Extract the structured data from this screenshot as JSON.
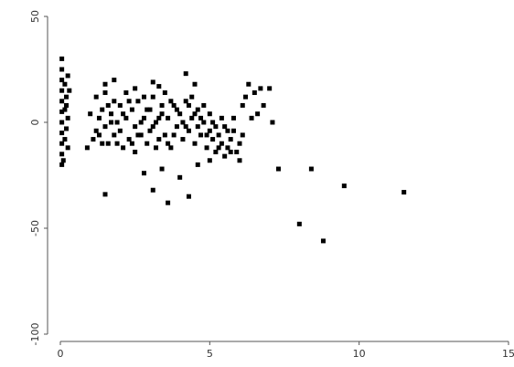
{
  "chart_data": {
    "type": "scatter",
    "title": "",
    "xlabel": "",
    "ylabel": "",
    "xlim": [
      0,
      15
    ],
    "ylim": [
      -100,
      50
    ],
    "xticks": [
      0,
      5,
      10,
      15
    ],
    "yticks": [
      50,
      0,
      -50,
      -100
    ],
    "xtick_labels": [
      "0",
      "5",
      "10",
      "15"
    ],
    "ytick_labels": [
      "50",
      "0",
      "-50",
      "-100"
    ],
    "grid": false,
    "legend": "none",
    "marker_color": "#000000",
    "points": [
      {
        "x": 0.05,
        "y": 30
      },
      {
        "x": 0.05,
        "y": 25
      },
      {
        "x": 0.05,
        "y": 20
      },
      {
        "x": 0.05,
        "y": 15
      },
      {
        "x": 0.05,
        "y": 10
      },
      {
        "x": 0.05,
        "y": 5
      },
      {
        "x": 0.05,
        "y": 0
      },
      {
        "x": 0.05,
        "y": -5
      },
      {
        "x": 0.05,
        "y": -10
      },
      {
        "x": 0.05,
        "y": -15
      },
      {
        "x": 0.05,
        "y": -20
      },
      {
        "x": 0.15,
        "y": 18
      },
      {
        "x": 0.2,
        "y": 12
      },
      {
        "x": 0.15,
        "y": 6
      },
      {
        "x": 0.25,
        "y": 2
      },
      {
        "x": 0.2,
        "y": -3
      },
      {
        "x": 0.15,
        "y": -8
      },
      {
        "x": 0.25,
        "y": -12
      },
      {
        "x": 0.2,
        "y": 8
      },
      {
        "x": 0.3,
        "y": 15
      },
      {
        "x": 0.1,
        "y": -18
      },
      {
        "x": 0.25,
        "y": 22
      },
      {
        "x": 0.9,
        "y": -12
      },
      {
        "x": 1.1,
        "y": -8
      },
      {
        "x": 1.2,
        "y": -4
      },
      {
        "x": 1.3,
        "y": 2
      },
      {
        "x": 1.4,
        "y": 6
      },
      {
        "x": 1.5,
        "y": 14
      },
      {
        "x": 1.5,
        "y": -2
      },
      {
        "x": 1.6,
        "y": -10
      },
      {
        "x": 1.7,
        "y": 4
      },
      {
        "x": 1.8,
        "y": 10
      },
      {
        "x": 1.8,
        "y": -6
      },
      {
        "x": 1.9,
        "y": 0
      },
      {
        "x": 2.0,
        "y": -4
      },
      {
        "x": 2.0,
        "y": 8
      },
      {
        "x": 2.1,
        "y": -12
      },
      {
        "x": 2.2,
        "y": 2
      },
      {
        "x": 2.3,
        "y": -8
      },
      {
        "x": 2.4,
        "y": 6
      },
      {
        "x": 2.5,
        "y": -2
      },
      {
        "x": 2.5,
        "y": -14
      },
      {
        "x": 2.6,
        "y": 10
      },
      {
        "x": 2.7,
        "y": -6
      },
      {
        "x": 2.8,
        "y": 2
      },
      {
        "x": 2.9,
        "y": -10
      },
      {
        "x": 3.0,
        "y": 6
      },
      {
        "x": 3.0,
        "y": -4
      },
      {
        "x": 3.1,
        "y": 12
      },
      {
        "x": 3.2,
        "y": 0
      },
      {
        "x": 3.3,
        "y": -8
      },
      {
        "x": 3.4,
        "y": 4
      },
      {
        "x": 3.5,
        "y": 14
      },
      {
        "x": 3.5,
        "y": -6
      },
      {
        "x": 3.6,
        "y": 2
      },
      {
        "x": 3.7,
        "y": -12
      },
      {
        "x": 3.8,
        "y": 8
      },
      {
        "x": 3.9,
        "y": -2
      },
      {
        "x": 4.0,
        "y": 4
      },
      {
        "x": 4.1,
        "y": -8
      },
      {
        "x": 4.2,
        "y": 10
      },
      {
        "x": 4.3,
        "y": -4
      },
      {
        "x": 4.4,
        "y": 2
      },
      {
        "x": 4.5,
        "y": -10
      },
      {
        "x": 4.6,
        "y": 6
      },
      {
        "x": 4.7,
        "y": -6
      },
      {
        "x": 4.8,
        "y": 0
      },
      {
        "x": 4.9,
        "y": -12
      },
      {
        "x": 5.0,
        "y": -4
      },
      {
        "x": 5.1,
        "y": -8
      },
      {
        "x": 5.2,
        "y": -14
      },
      {
        "x": 5.3,
        "y": -6
      },
      {
        "x": 5.4,
        "y": -10
      },
      {
        "x": 5.5,
        "y": -2
      },
      {
        "x": 5.6,
        "y": -12
      },
      {
        "x": 5.7,
        "y": -8
      },
      {
        "x": 5.8,
        "y": -4
      },
      {
        "x": 5.9,
        "y": -14
      },
      {
        "x": 6.0,
        "y": -10
      },
      {
        "x": 6.1,
        "y": -6
      },
      {
        "x": 1.2,
        "y": 12
      },
      {
        "x": 1.4,
        "y": -10
      },
      {
        "x": 1.6,
        "y": 8
      },
      {
        "x": 2.2,
        "y": 14
      },
      {
        "x": 2.4,
        "y": -10
      },
      {
        "x": 2.6,
        "y": -6
      },
      {
        "x": 2.8,
        "y": 12
      },
      {
        "x": 3.2,
        "y": -12
      },
      {
        "x": 3.4,
        "y": 8
      },
      {
        "x": 3.6,
        "y": -10
      },
      {
        "x": 3.8,
        "y": -6
      },
      {
        "x": 4.2,
        "y": -2
      },
      {
        "x": 4.4,
        "y": 12
      },
      {
        "x": 4.6,
        "y": -2
      },
      {
        "x": 4.8,
        "y": 8
      },
      {
        "x": 5.0,
        "y": 4
      },
      {
        "x": 5.2,
        "y": -2
      },
      {
        "x": 5.4,
        "y": 2
      },
      {
        "x": 5.6,
        "y": -4
      },
      {
        "x": 5.8,
        "y": 2
      },
      {
        "x": 1.0,
        "y": 4
      },
      {
        "x": 1.3,
        "y": -6
      },
      {
        "x": 1.7,
        "y": 0
      },
      {
        "x": 1.9,
        "y": -10
      },
      {
        "x": 2.1,
        "y": 4
      },
      {
        "x": 2.3,
        "y": 10
      },
      {
        "x": 2.7,
        "y": 0
      },
      {
        "x": 2.9,
        "y": 6
      },
      {
        "x": 3.1,
        "y": -2
      },
      {
        "x": 3.3,
        "y": 2
      },
      {
        "x": 3.7,
        "y": 10
      },
      {
        "x": 3.9,
        "y": 6
      },
      {
        "x": 4.1,
        "y": 0
      },
      {
        "x": 4.3,
        "y": 8
      },
      {
        "x": 4.5,
        "y": 4
      },
      {
        "x": 4.7,
        "y": 2
      },
      {
        "x": 4.9,
        "y": -6
      },
      {
        "x": 5.1,
        "y": 0
      },
      {
        "x": 5.3,
        "y": -12
      },
      {
        "x": 5.7,
        "y": -14
      },
      {
        "x": 1.5,
        "y": 18
      },
      {
        "x": 1.8,
        "y": 20
      },
      {
        "x": 2.5,
        "y": 16
      },
      {
        "x": 3.1,
        "y": 19
      },
      {
        "x": 3.3,
        "y": 17
      },
      {
        "x": 4.2,
        "y": 23
      },
      {
        "x": 4.5,
        "y": 18
      },
      {
        "x": 1.5,
        "y": -34
      },
      {
        "x": 2.8,
        "y": -24
      },
      {
        "x": 3.1,
        "y": -32
      },
      {
        "x": 3.4,
        "y": -22
      },
      {
        "x": 3.6,
        "y": -38
      },
      {
        "x": 4.0,
        "y": -26
      },
      {
        "x": 4.3,
        "y": -35
      },
      {
        "x": 4.6,
        "y": -20
      },
      {
        "x": 5.0,
        "y": -18
      },
      {
        "x": 5.5,
        "y": -16
      },
      {
        "x": 6.0,
        "y": -18
      },
      {
        "x": 6.1,
        "y": 8
      },
      {
        "x": 6.2,
        "y": 12
      },
      {
        "x": 6.3,
        "y": 18
      },
      {
        "x": 6.4,
        "y": 2
      },
      {
        "x": 6.5,
        "y": 14
      },
      {
        "x": 6.6,
        "y": 4
      },
      {
        "x": 6.7,
        "y": 16
      },
      {
        "x": 6.8,
        "y": 8
      },
      {
        "x": 7.0,
        "y": 16
      },
      {
        "x": 7.1,
        "y": 0
      },
      {
        "x": 7.3,
        "y": -22
      },
      {
        "x": 8.0,
        "y": -48
      },
      {
        "x": 8.4,
        "y": -22
      },
      {
        "x": 8.8,
        "y": -56
      },
      {
        "x": 9.5,
        "y": -30
      },
      {
        "x": 11.5,
        "y": -33
      }
    ]
  }
}
